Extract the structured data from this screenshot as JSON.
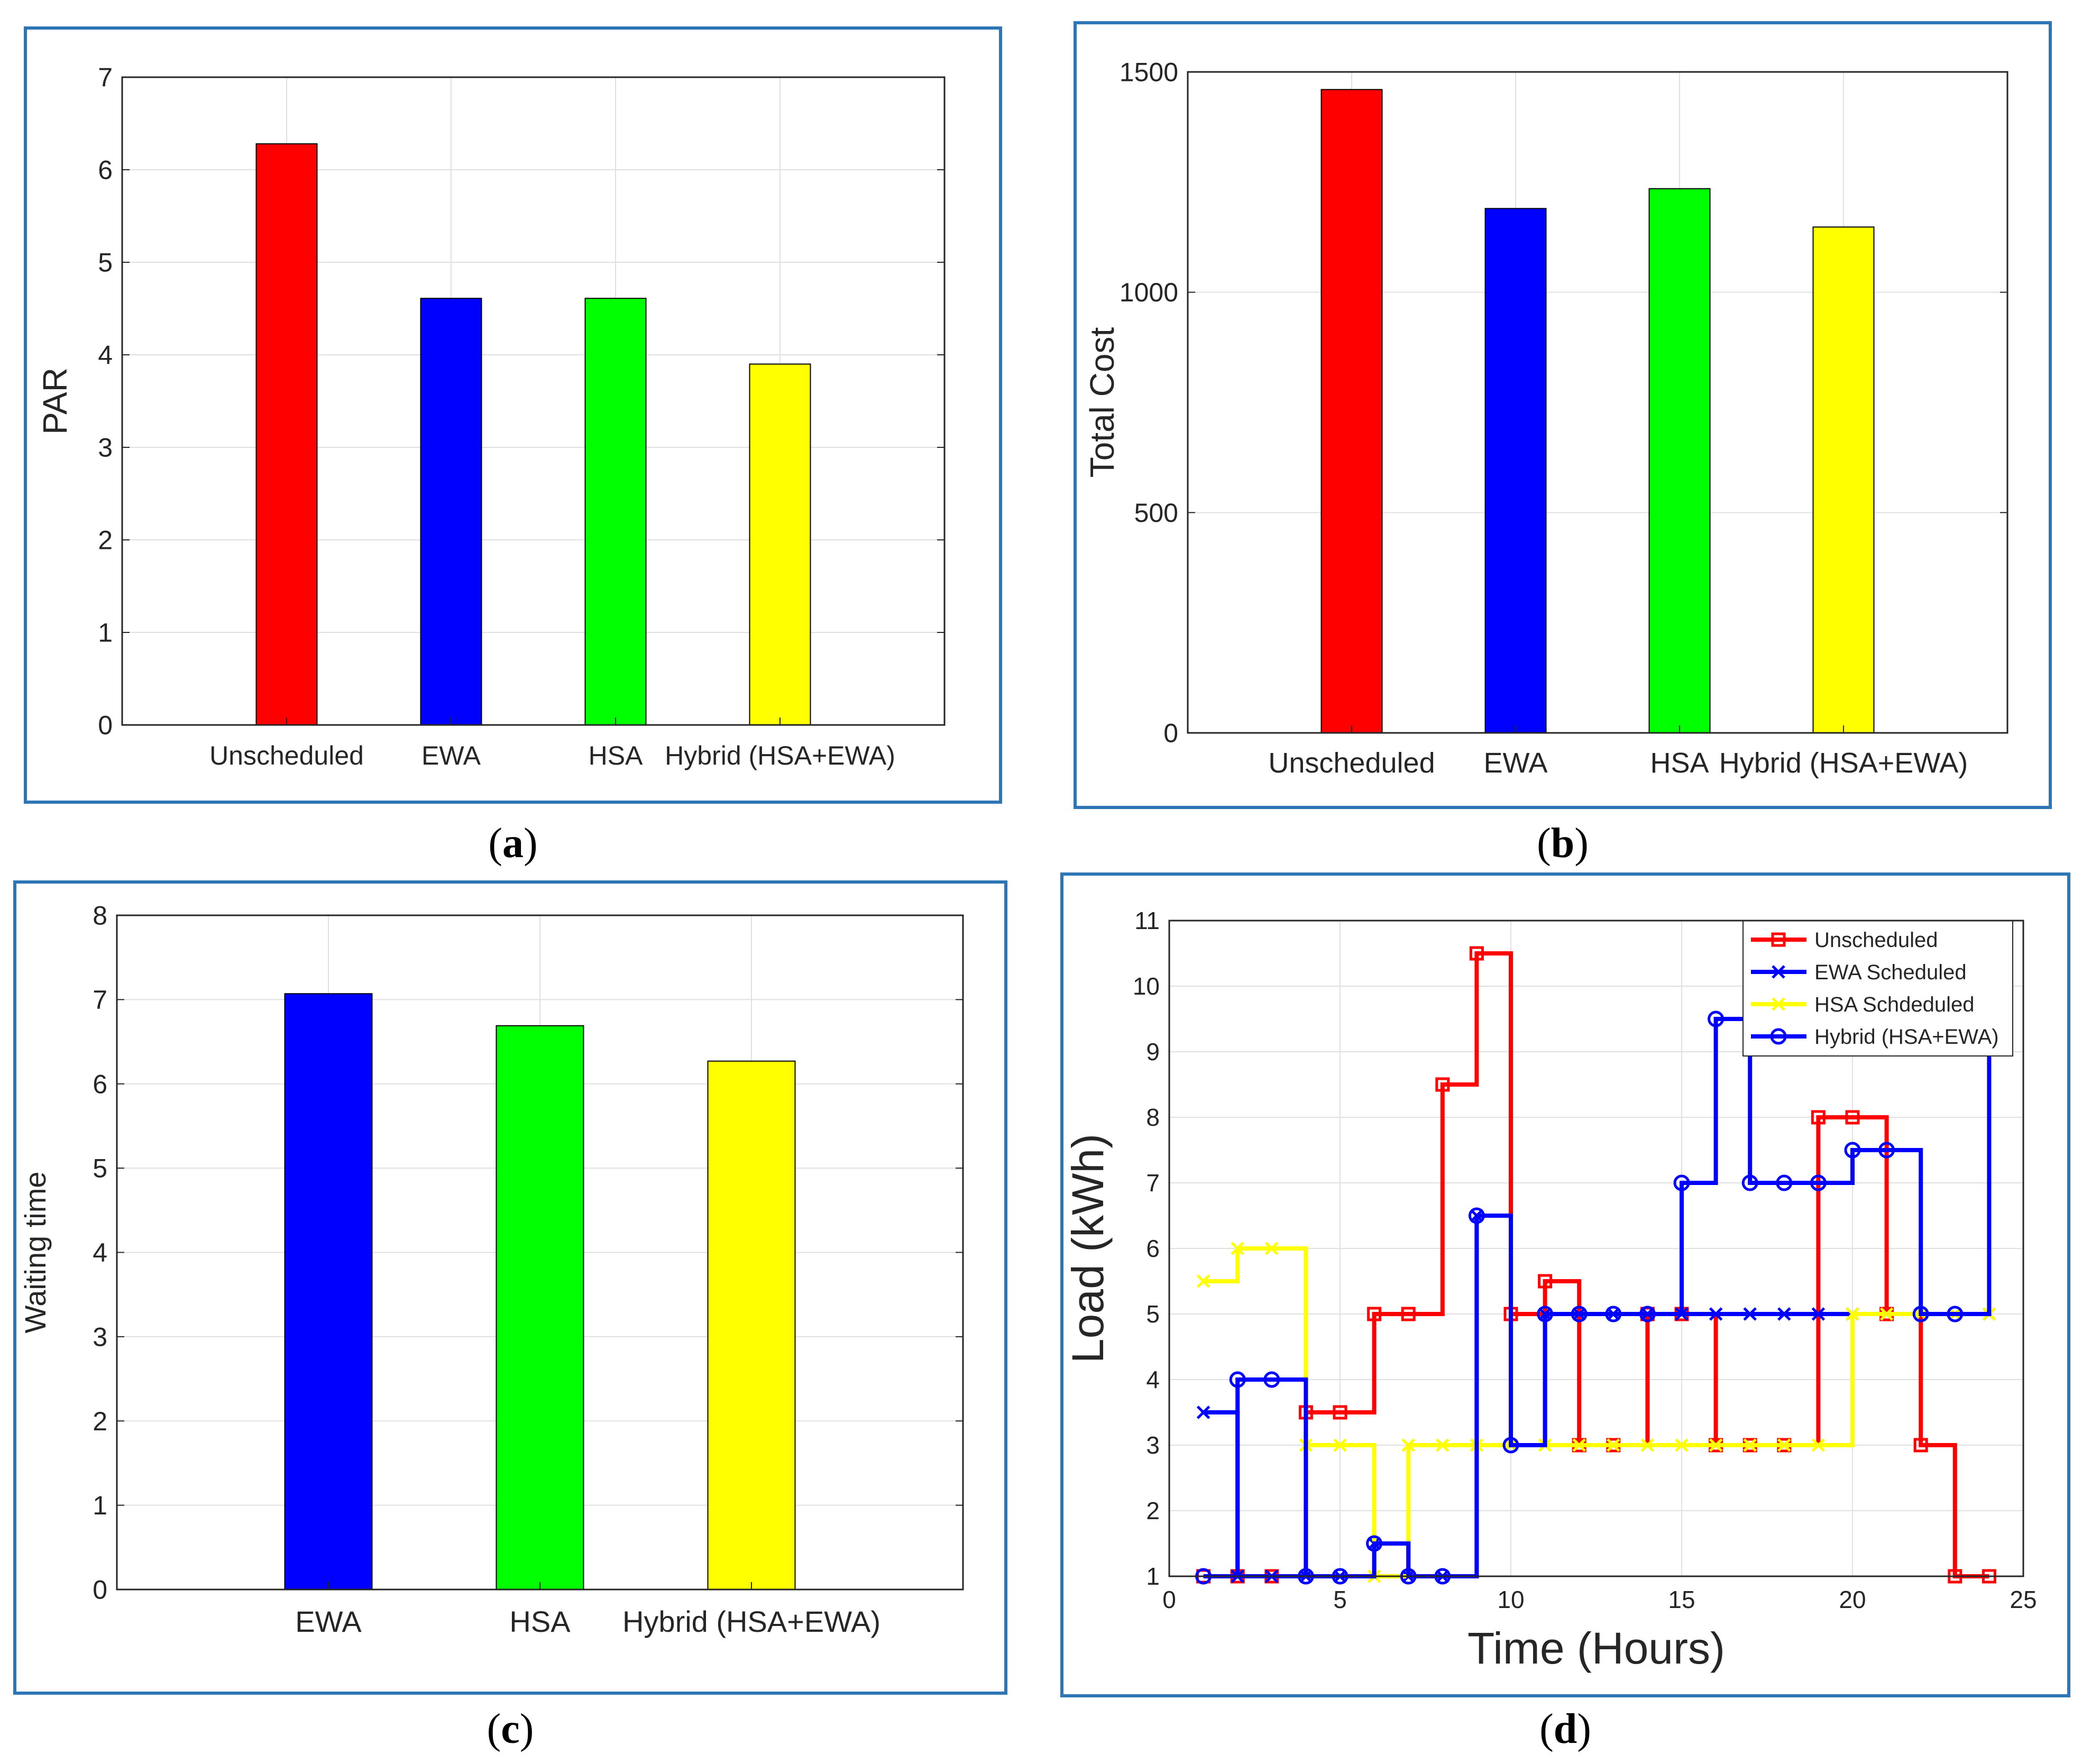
{
  "colors": {
    "panel_border": "#2e75b6",
    "axis": "#262626",
    "grid": "#e0e0e0",
    "red": "#ff0000",
    "blue": "#0000ff",
    "green": "#00ff00",
    "yellow": "#ffff00"
  },
  "captions": {
    "a": "a",
    "b": "b",
    "c": "c",
    "d": "d"
  },
  "chart_data": [
    {
      "id": "a",
      "type": "bar",
      "title": "",
      "xlabel": "",
      "ylabel": "PAR",
      "categories": [
        "Unscheduled",
        "EWA",
        "HSA",
        "Hybrid (HSA+EWA)"
      ],
      "values": [
        6.28,
        4.61,
        4.61,
        3.9
      ],
      "bar_colors": [
        "#ff0000",
        "#0000ff",
        "#00ff00",
        "#ffff00"
      ],
      "ylim": [
        0,
        7
      ],
      "yticks": [
        0,
        1,
        2,
        3,
        4,
        5,
        6,
        7
      ],
      "grid": true
    },
    {
      "id": "b",
      "type": "bar",
      "title": "",
      "xlabel": "",
      "ylabel": "Total Cost",
      "categories": [
        "Unscheduled",
        "EWA",
        "HSA",
        "Hybrid (HSA+EWA)"
      ],
      "values": [
        1460,
        1190,
        1235,
        1148
      ],
      "bar_colors": [
        "#ff0000",
        "#0000ff",
        "#00ff00",
        "#ffff00"
      ],
      "ylim": [
        0,
        1500
      ],
      "yticks": [
        0,
        500,
        1000,
        1500
      ],
      "grid": true
    },
    {
      "id": "c",
      "type": "bar",
      "title": "",
      "xlabel": "",
      "ylabel": "Waiting time",
      "categories": [
        "EWA",
        "HSA",
        "Hybrid (HSA+EWA)"
      ],
      "values": [
        7.07,
        6.69,
        6.27
      ],
      "bar_colors": [
        "#0000ff",
        "#00ff00",
        "#ffff00"
      ],
      "ylim": [
        0,
        8
      ],
      "yticks": [
        0,
        1,
        2,
        3,
        4,
        5,
        6,
        7,
        8
      ],
      "grid": true
    },
    {
      "id": "d",
      "type": "line",
      "title": "",
      "xlabel": "Time (Hours)",
      "ylabel": "Load (kWh)",
      "xlim": [
        0,
        25
      ],
      "ylim": [
        1,
        11
      ],
      "xticks": [
        0,
        5,
        10,
        15,
        20,
        25
      ],
      "yticks": [
        1,
        2,
        3,
        4,
        5,
        6,
        7,
        8,
        9,
        10,
        11
      ],
      "grid": true,
      "legend_position": "top-right",
      "x": [
        1,
        2,
        3,
        4,
        5,
        6,
        7,
        8,
        9,
        10,
        11,
        12,
        13,
        14,
        15,
        16,
        17,
        18,
        19,
        20,
        21,
        22,
        23,
        24
      ],
      "series": [
        {
          "name": "Unscheduled",
          "color": "#ff0000",
          "marker": "square",
          "values": [
            1,
            1,
            1,
            3.5,
            3.5,
            5,
            5,
            8.5,
            10.5,
            5,
            5.5,
            3,
            3,
            5,
            5,
            3,
            3,
            3,
            8,
            8,
            5,
            3,
            1,
            1
          ]
        },
        {
          "name": "EWA Scheduled",
          "color": "#0000ff",
          "marker": "x",
          "values": [
            3.5,
            1,
            1,
            1,
            1,
            1.5,
            1,
            1,
            6.5,
            3,
            5,
            5,
            5,
            5,
            5,
            5,
            5,
            5,
            5,
            5,
            5,
            5,
            5,
            5
          ]
        },
        {
          "name": "HSA Schdeduled",
          "color": "#ffff00",
          "marker": "x",
          "values": [
            5.5,
            6,
            6,
            3,
            3,
            1,
            3,
            3,
            3,
            3,
            3,
            3,
            3,
            3,
            3,
            3,
            3,
            3,
            3,
            5,
            5,
            5,
            5,
            5
          ]
        },
        {
          "name": "Hybrid (HSA+EWA)",
          "color": "#0000ff",
          "marker": "circle",
          "values": [
            1,
            4,
            4,
            1,
            1,
            1.5,
            1,
            1,
            6.5,
            3,
            5,
            5,
            5,
            5,
            7,
            9.5,
            7,
            7,
            7,
            7.5,
            7.5,
            5,
            5,
            9.5
          ]
        }
      ]
    }
  ]
}
